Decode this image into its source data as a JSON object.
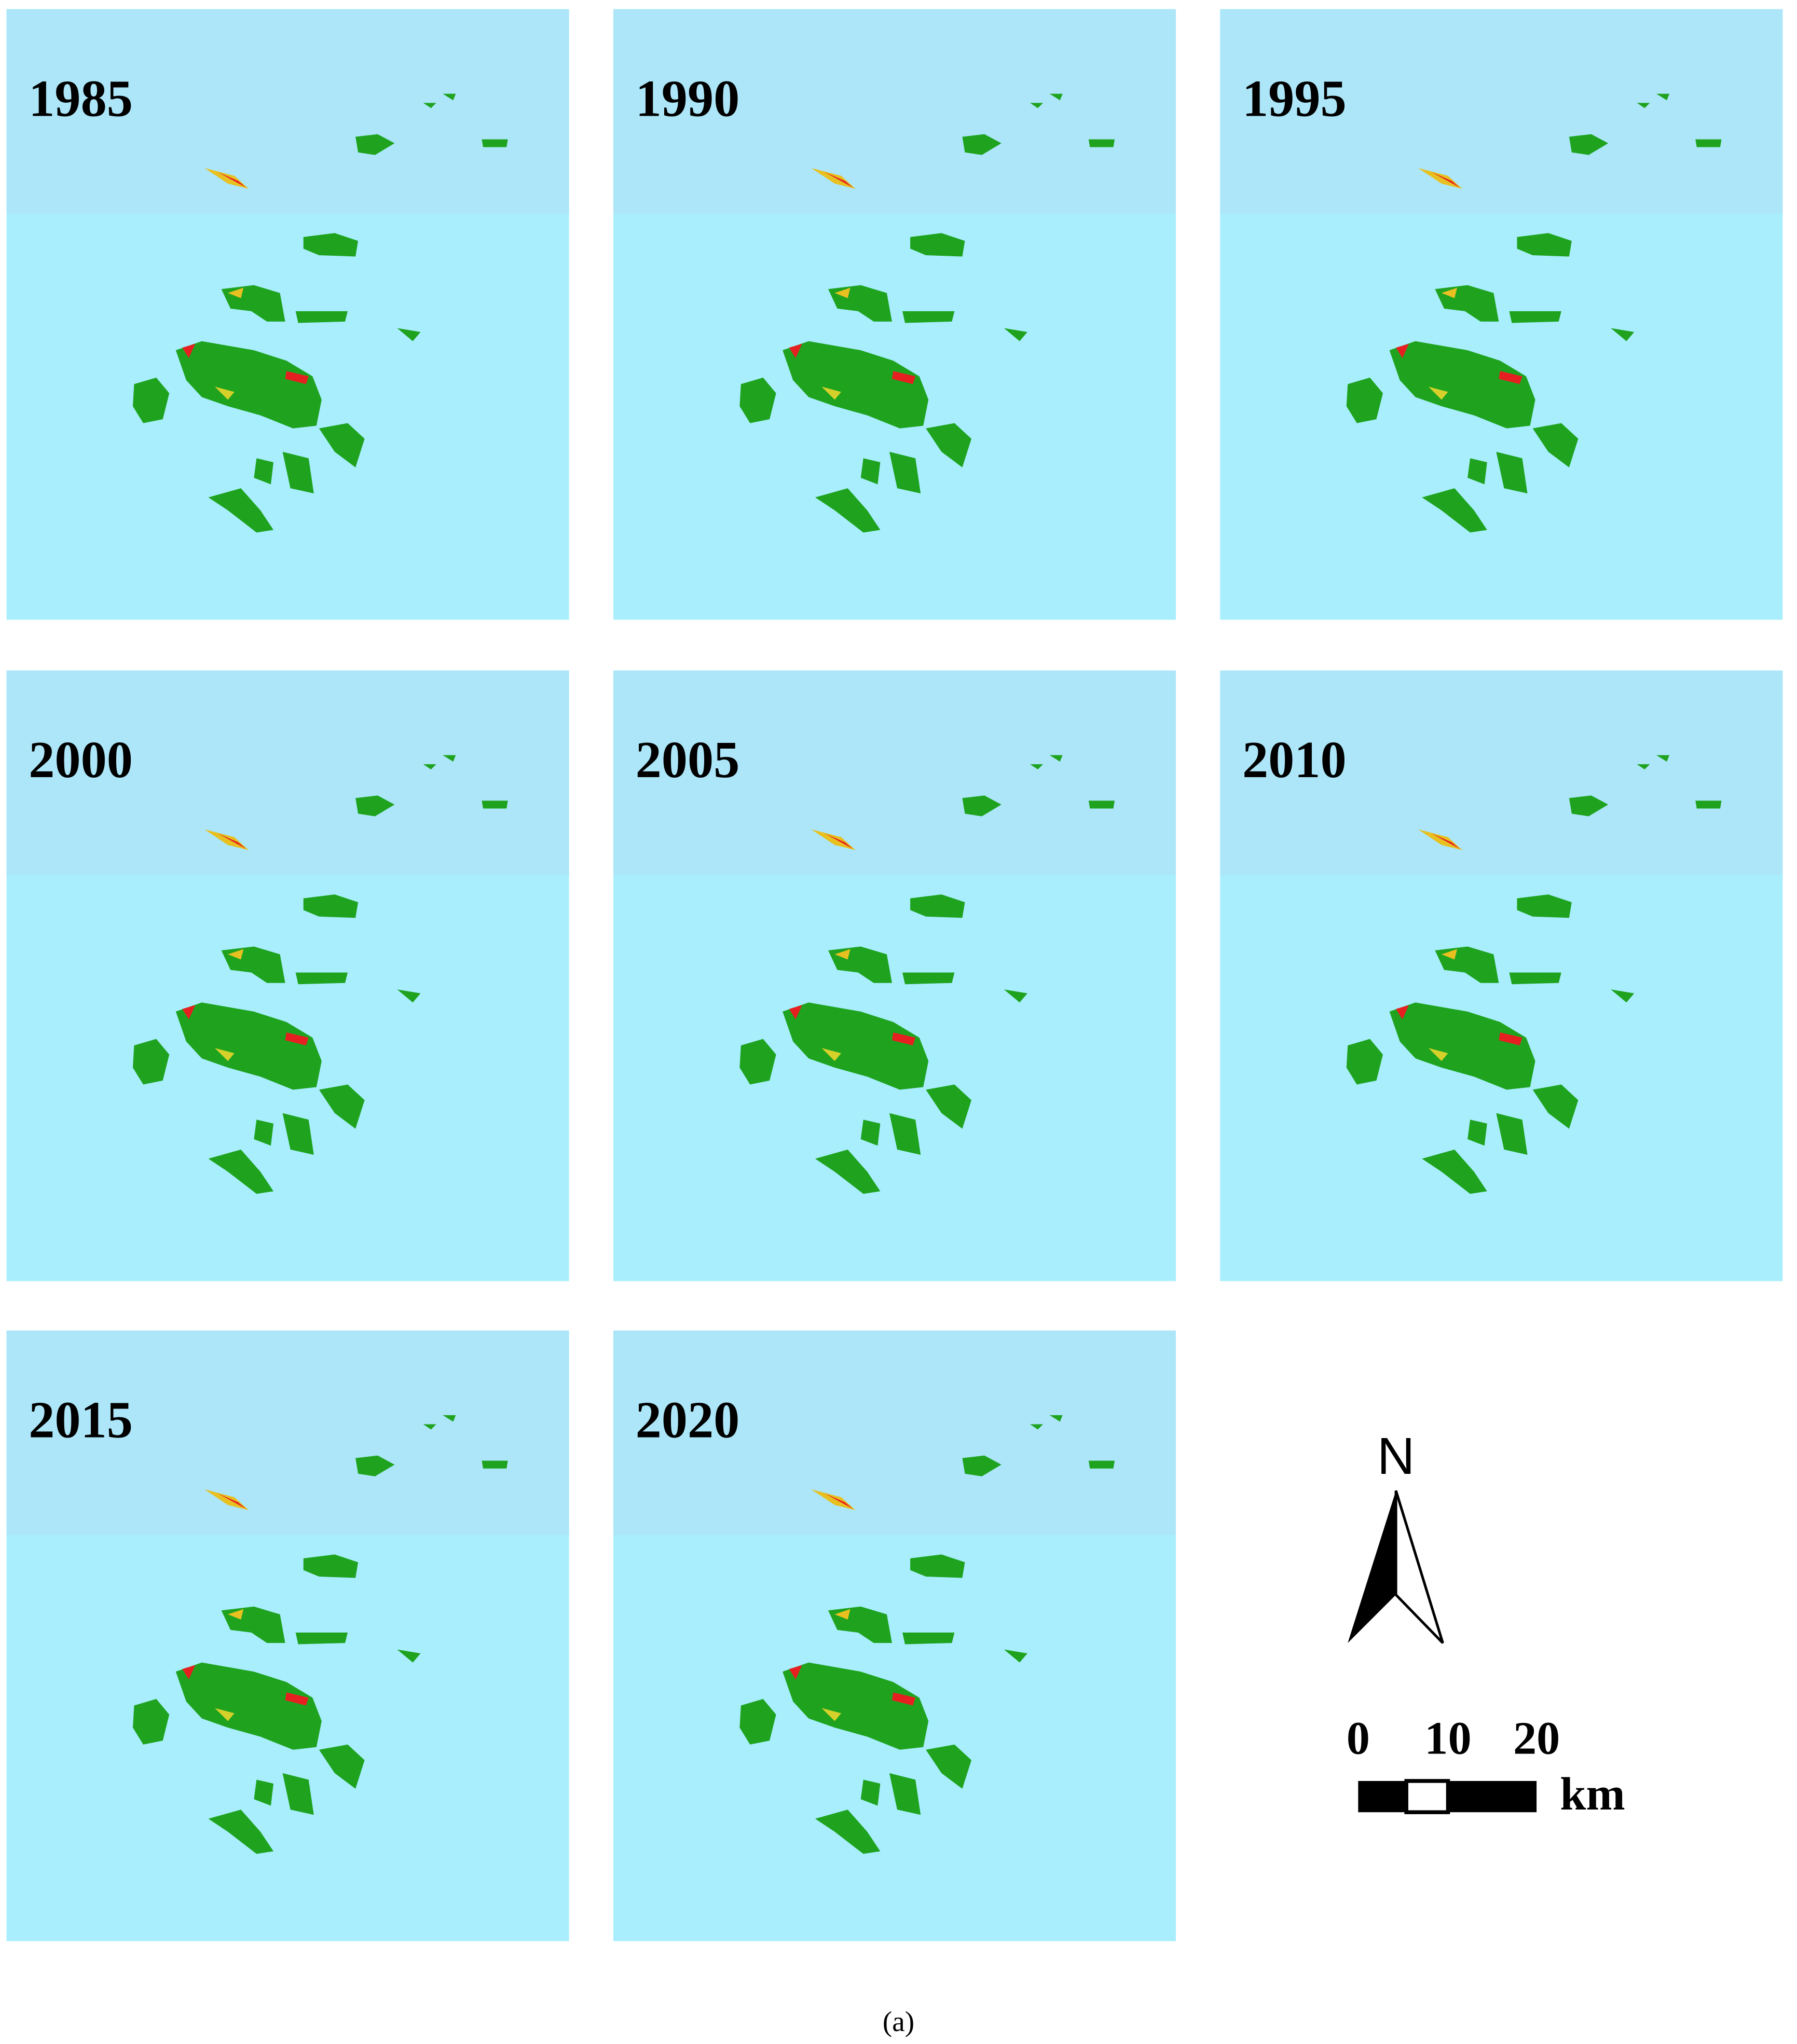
{
  "panels": [
    {
      "label": "1985"
    },
    {
      "label": "1990"
    },
    {
      "label": "1995"
    },
    {
      "label": "2000"
    },
    {
      "label": "2005"
    },
    {
      "label": "2010"
    },
    {
      "label": "2015"
    },
    {
      "label": "2020"
    }
  ],
  "north_arrow": {
    "label": "N"
  },
  "scale_bar": {
    "ticks": [
      0,
      10,
      20
    ],
    "unit": "km"
  },
  "caption": "(a)"
}
